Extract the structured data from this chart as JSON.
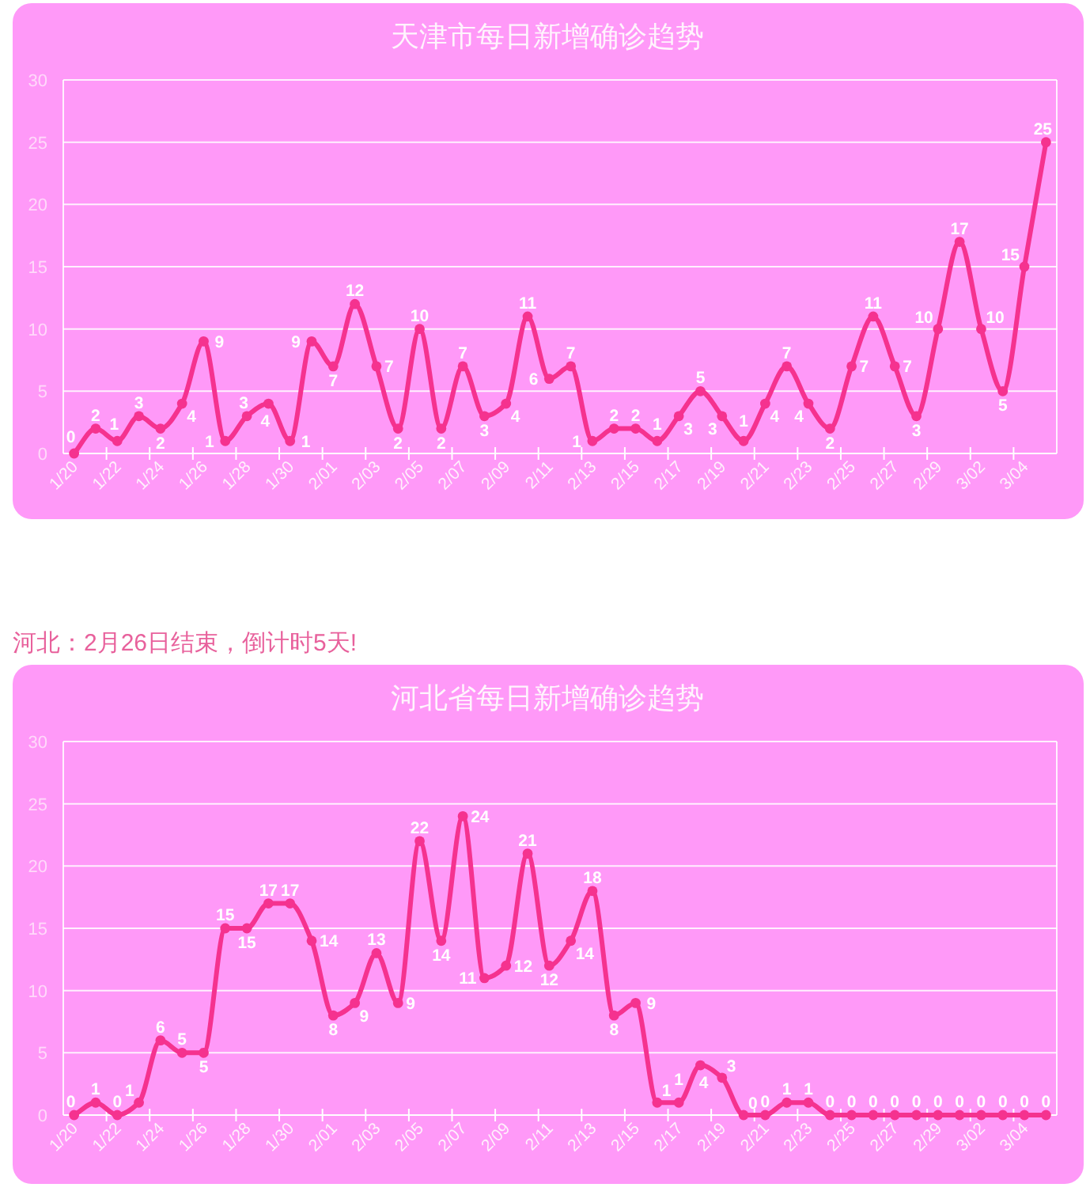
{
  "chart_data": [
    {
      "type": "line",
      "title": "天津市每日新增确诊趋势",
      "categories": [
        "1/20",
        null,
        "1/22",
        null,
        "1/24",
        null,
        "1/26",
        null,
        "1/28",
        null,
        "1/30",
        null,
        "2/01",
        null,
        "2/03",
        null,
        "2/05",
        null,
        "2/07",
        null,
        "2/09",
        null,
        "2/11",
        null,
        "2/13",
        null,
        "2/15",
        null,
        "2/17",
        null,
        "2/19",
        null,
        "2/21",
        null,
        "2/23",
        null,
        "2/25",
        null,
        "2/27",
        null,
        "2/29",
        null,
        "3/02",
        null,
        "3/04",
        null
      ],
      "series": [
        {
          "color": "#f5328f",
          "values": [
            0,
            2,
            1,
            3,
            2,
            4,
            9,
            1,
            3,
            4,
            1,
            9,
            7,
            12,
            7,
            2,
            10,
            2,
            7,
            3,
            4,
            11,
            6,
            7,
            1,
            2,
            2,
            1,
            3,
            5,
            3,
            1,
            4,
            7,
            4,
            2,
            7,
            11,
            7,
            3,
            10,
            17,
            10,
            5,
            15,
            25
          ]
        }
      ],
      "ylim": [
        0,
        30
      ],
      "yticks": [
        0,
        5,
        10,
        15,
        20,
        25,
        30
      ],
      "grid": "y",
      "marker": "circle",
      "data_labels": true
    },
    {
      "type": "line",
      "title": "河北省每日新增确诊趋势",
      "annotations": [
        "河北：2月26日结束，倒计时5天!"
      ],
      "categories": [
        "1/20",
        null,
        "1/22",
        null,
        "1/24",
        null,
        "1/26",
        null,
        "1/28",
        null,
        "1/30",
        null,
        "2/01",
        null,
        "2/03",
        null,
        "2/05",
        null,
        "2/07",
        null,
        "2/09",
        null,
        "2/11",
        null,
        "2/13",
        null,
        "2/15",
        null,
        "2/17",
        null,
        "2/19",
        null,
        "2/21",
        null,
        "2/23",
        null,
        "2/25",
        null,
        "2/27",
        null,
        "2/29",
        null,
        "3/02",
        null,
        "3/04",
        null
      ],
      "series": [
        {
          "color": "#f5328f",
          "values": [
            0,
            1,
            0,
            1,
            6,
            5,
            5,
            15,
            15,
            17,
            17,
            14,
            8,
            9,
            13,
            9,
            22,
            14,
            24,
            11,
            12,
            21,
            12,
            14,
            18,
            8,
            9,
            1,
            1,
            4,
            3,
            0,
            0,
            1,
            1,
            0,
            0,
            0,
            0,
            0,
            0,
            0,
            0,
            0,
            0,
            0
          ]
        }
      ],
      "ylim": [
        0,
        30
      ],
      "yticks": [
        0,
        5,
        10,
        15,
        20,
        25,
        30
      ],
      "grid": "y",
      "marker": "circle",
      "data_labels": true
    }
  ]
}
